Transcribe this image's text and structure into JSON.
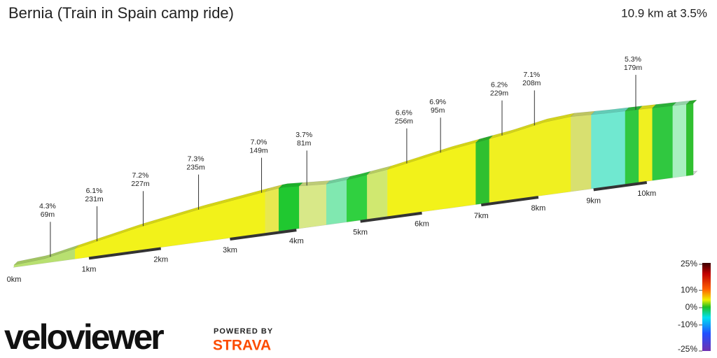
{
  "chart_data": {
    "type": "profile",
    "title": "Bernia (Train in Spain camp ride)",
    "subtitle": "10.9 km at 3.5%",
    "xlim": [
      0,
      10.9
    ],
    "xticks": [
      {
        "value": 0,
        "label": "0km"
      },
      {
        "value": 1,
        "label": "1km"
      },
      {
        "value": 2,
        "label": "2km"
      },
      {
        "value": 3,
        "label": "3km"
      },
      {
        "value": 4,
        "label": "4km"
      },
      {
        "value": 5,
        "label": "5km"
      },
      {
        "value": 6,
        "label": "6km"
      },
      {
        "value": 7,
        "label": "7km"
      },
      {
        "value": 8,
        "label": "8km"
      },
      {
        "value": 9,
        "label": "9km"
      },
      {
        "value": 10,
        "label": "10km"
      }
    ],
    "annotations": [
      {
        "x": 0.48,
        "grade": "4.3%",
        "length": "69m"
      },
      {
        "x": 1.11,
        "grade": "6.1%",
        "length": "231m"
      },
      {
        "x": 1.75,
        "grade": "7.2%",
        "length": "227m"
      },
      {
        "x": 2.54,
        "grade": "7.3%",
        "length": "235m"
      },
      {
        "x": 3.47,
        "grade": "7.0%",
        "length": "149m"
      },
      {
        "x": 4.16,
        "grade": "3.7%",
        "length": "81m"
      },
      {
        "x": 5.75,
        "grade": "6.6%",
        "length": "256m"
      },
      {
        "x": 6.31,
        "grade": "6.9%",
        "length": "95m"
      },
      {
        "x": 7.36,
        "grade": "6.2%",
        "length": "229m"
      },
      {
        "x": 7.93,
        "grade": "7.1%",
        "length": "208m"
      },
      {
        "x": 9.79,
        "grade": "5.3%",
        "length": "179m"
      }
    ],
    "color_scale": {
      "lim": [
        -25,
        25
      ],
      "ticks": [
        {
          "value": 25,
          "label": "25%"
        },
        {
          "value": 10,
          "label": "10%"
        },
        {
          "value": 0,
          "label": "0%"
        },
        {
          "value": -10,
          "label": "-10%"
        },
        {
          "value": -25,
          "label": "-25%"
        }
      ]
    }
  },
  "branding": {
    "logo": "veloviewer",
    "powered_by": "POWERED BY",
    "partner": "STRAVA"
  }
}
